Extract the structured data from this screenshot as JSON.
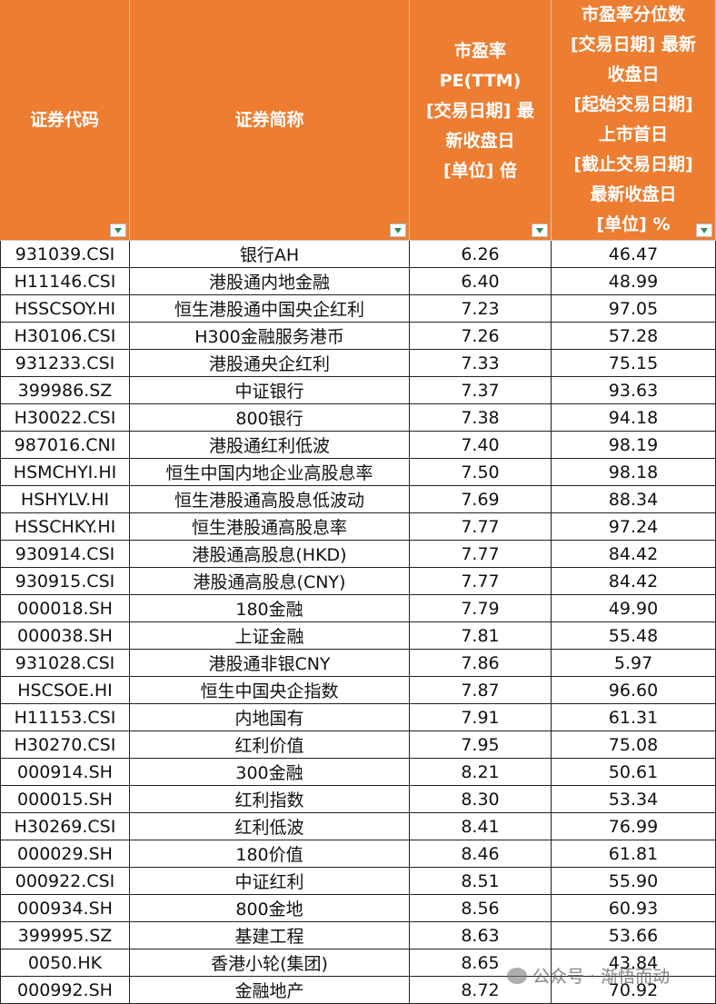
{
  "table": {
    "header": [
      {
        "lines": [
          "证券代码"
        ]
      },
      {
        "lines": [
          "证券简称"
        ]
      },
      {
        "lines": [
          "市盈率",
          "PE(TTM)",
          "[交易日期] 最",
          "新收盘日",
          "[单位] 倍"
        ]
      },
      {
        "lines": [
          "市盈率分位数",
          "[交易日期] 最新",
          "收盘日",
          "[起始交易日期]",
          "上市首日",
          "[截止交易日期]",
          "最新收盘日",
          "[单位] %"
        ]
      }
    ],
    "rows": [
      [
        "931039.CSI",
        "银行AH",
        "6.26",
        "46.47"
      ],
      [
        "H11146.CSI",
        "港股通内地金融",
        "6.40",
        "48.99"
      ],
      [
        "HSSCSOY.HI",
        "恒生港股通中国央企红利",
        "7.23",
        "97.05"
      ],
      [
        "H30106.CSI",
        "H300金融服务港币",
        "7.26",
        "57.28"
      ],
      [
        "931233.CSI",
        "港股通央企红利",
        "7.33",
        "75.15"
      ],
      [
        "399986.SZ",
        "中证银行",
        "7.37",
        "93.63"
      ],
      [
        "H30022.CSI",
        "800银行",
        "7.38",
        "94.18"
      ],
      [
        "987016.CNI",
        "港股通红利低波",
        "7.40",
        "98.19"
      ],
      [
        "HSMCHYI.HI",
        "恒生中国内地企业高股息率",
        "7.50",
        "98.18"
      ],
      [
        "HSHYLV.HI",
        "恒生港股通高股息低波动",
        "7.69",
        "88.34"
      ],
      [
        "HSSCHKY.HI",
        "恒生港股通高股息率",
        "7.77",
        "97.24"
      ],
      [
        "930914.CSI",
        "港股通高股息(HKD)",
        "7.77",
        "84.42"
      ],
      [
        "930915.CSI",
        "港股通高股息(CNY)",
        "7.77",
        "84.42"
      ],
      [
        "000018.SH",
        "180金融",
        "7.79",
        "49.90"
      ],
      [
        "000038.SH",
        "上证金融",
        "7.81",
        "55.48"
      ],
      [
        "931028.CSI",
        "港股通非银CNY",
        "7.86",
        "5.97"
      ],
      [
        "HSCSOE.HI",
        "恒生中国央企指数",
        "7.87",
        "96.60"
      ],
      [
        "H11153.CSI",
        "内地国有",
        "7.91",
        "61.31"
      ],
      [
        "H30270.CSI",
        "红利价值",
        "7.95",
        "75.08"
      ],
      [
        "000914.SH",
        "300金融",
        "8.21",
        "50.61"
      ],
      [
        "000015.SH",
        "红利指数",
        "8.30",
        "53.34"
      ],
      [
        "H30269.CSI",
        "红利低波",
        "8.41",
        "76.99"
      ],
      [
        "000029.SH",
        "180价值",
        "8.46",
        "61.81"
      ],
      [
        "000922.CSI",
        "中证红利",
        "8.51",
        "55.90"
      ],
      [
        "000934.SH",
        "800金地",
        "8.56",
        "60.93"
      ],
      [
        "399995.SZ",
        "基建工程",
        "8.63",
        "53.66"
      ],
      [
        "0050.HK",
        "香港小轮(集团)",
        "8.65",
        "43.84"
      ],
      [
        "000992.SH",
        "金融地产",
        "8.72",
        "70.92"
      ]
    ]
  },
  "watermark": "公众号 · 渐悟而动"
}
